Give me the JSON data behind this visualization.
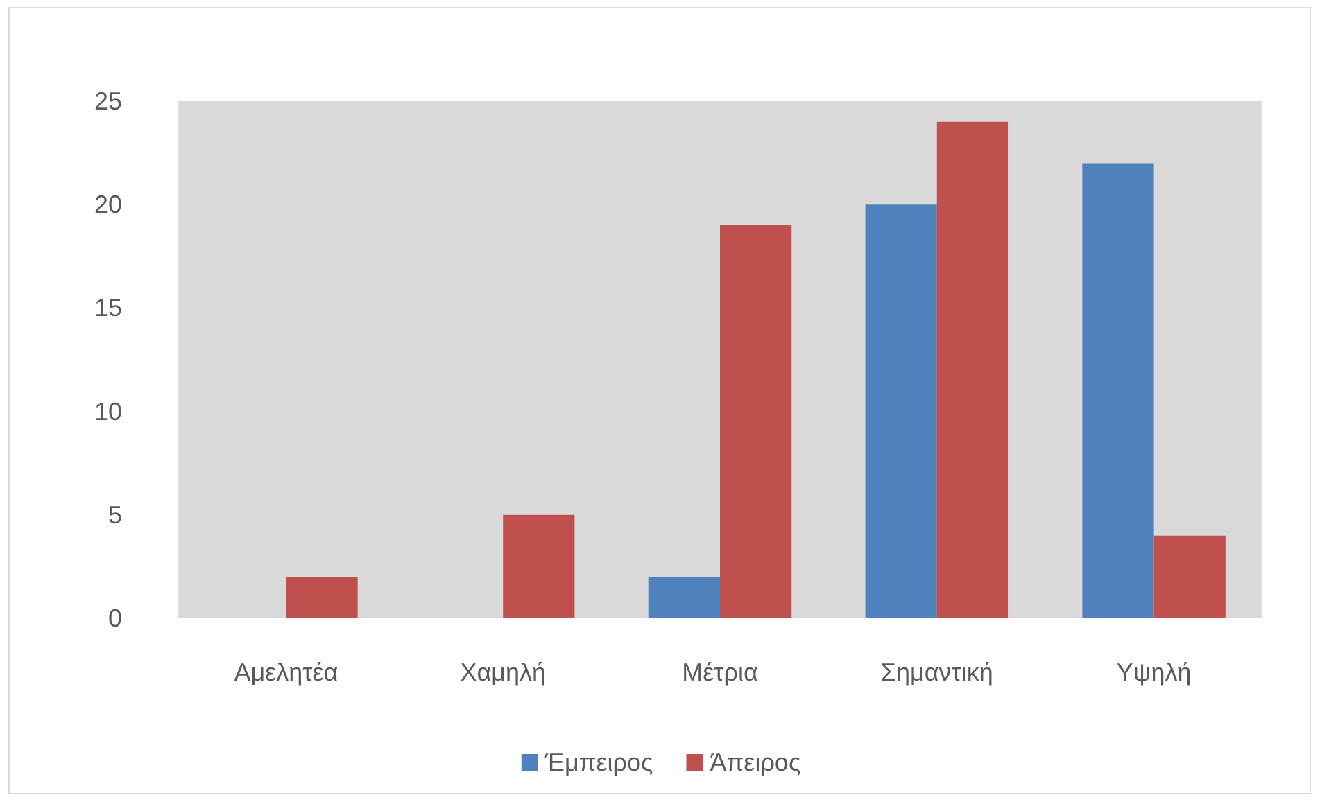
{
  "chart_data": {
    "type": "bar",
    "categories": [
      "Αμελητέα",
      "Χαμηλή",
      "Μέτρια",
      "Σημαντική",
      "Υψηλή"
    ],
    "series": [
      {
        "name": "Έμπειρος",
        "color": "#4f81bd",
        "values": [
          0,
          0,
          2,
          20,
          22
        ]
      },
      {
        "name": "Άπειρος",
        "color": "#c0504d",
        "values": [
          2,
          5,
          19,
          24,
          4
        ]
      }
    ],
    "ylim": [
      0,
      25
    ],
    "yticks": [
      0,
      5,
      10,
      15,
      20,
      25
    ],
    "grid": false,
    "legend": "bottom"
  }
}
